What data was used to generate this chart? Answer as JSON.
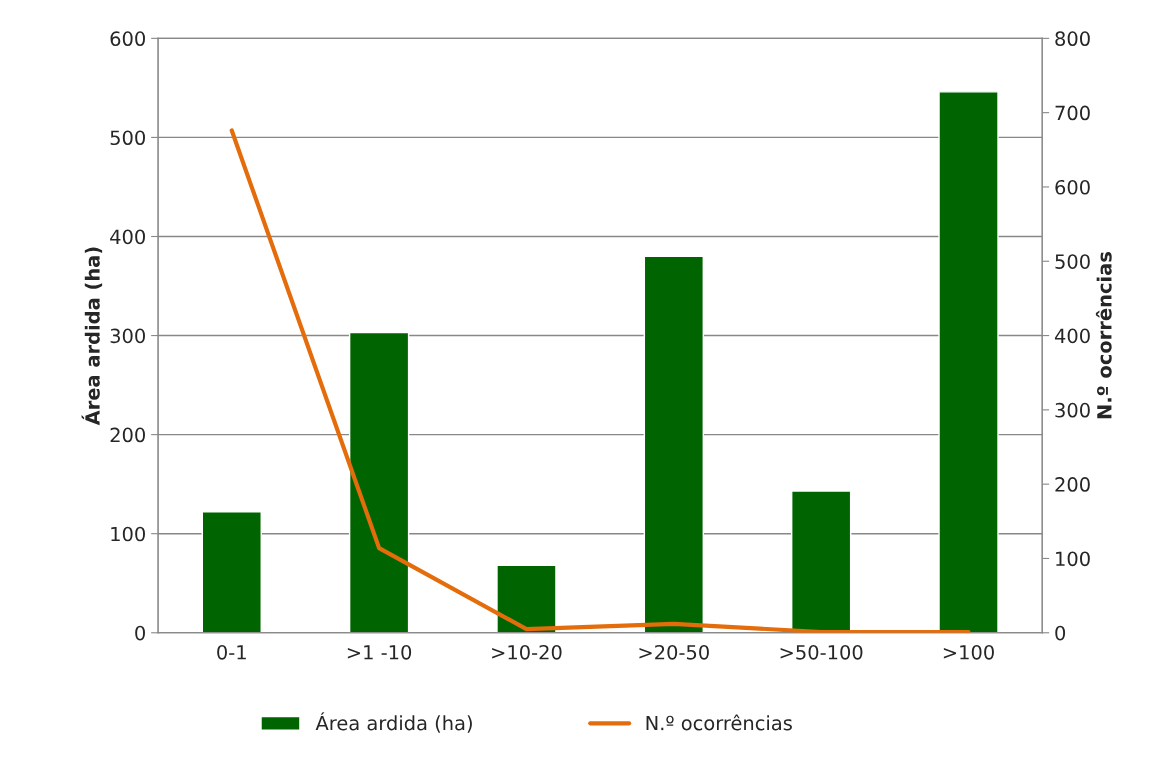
{
  "chart_data": {
    "type": "bar",
    "categories": [
      "0-1",
      ">1 -10",
      ">10-20",
      ">20-50",
      ">50-100",
      ">100"
    ],
    "ylabel": "Área ardida (ha)",
    "y2label": "N.º ocorrências",
    "series": [
      {
        "name": "Área ardida (ha)",
        "color": "#006400",
        "values": [
          122,
          303,
          68,
          380,
          143,
          546
        ]
      },
      {
        "name": "N.º ocorrências",
        "type": "line",
        "axis": "y2",
        "color": "#e46c0a",
        "values": [
          676,
          114,
          5,
          12,
          1,
          1
        ]
      }
    ],
    "ylim": [
      0,
      600
    ],
    "yticks": [
      0,
      100,
      200,
      300,
      400,
      500,
      600
    ],
    "y2lim": [
      0,
      800
    ],
    "y2ticks": [
      0,
      100,
      200,
      300,
      400,
      500,
      600,
      700,
      800
    ],
    "grid": "y",
    "legend": "bottom",
    "marker": "none"
  }
}
